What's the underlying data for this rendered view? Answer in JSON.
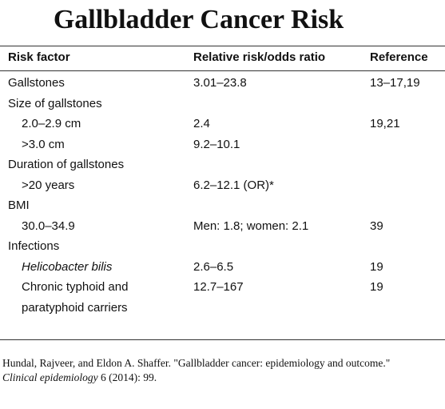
{
  "header": {
    "title": "Gallbladder Cancer Risk"
  },
  "table": {
    "columns": [
      "Risk factor",
      "Relative risk/odds ratio",
      "Reference"
    ],
    "rows": [
      {
        "factor": "Gallstones",
        "value": "3.01–23.8",
        "reference": "13–17,19"
      },
      {
        "factor": "Size of gallstones",
        "items": [
          {
            "factor": "2.0–2.9 cm",
            "value": "2.4",
            "reference": "19,21"
          },
          {
            "factor": ">3.0 cm",
            "value": "9.2–10.1"
          }
        ]
      },
      {
        "factor": "Duration of gallstones",
        "items": [
          {
            "factor": ">20 years",
            "value": "6.2–12.1 (OR)*"
          }
        ]
      },
      {
        "factor": "BMI",
        "items": [
          {
            "factor": "30.0–34.9",
            "value": "Men: 1.8; women: 2.1",
            "reference": "39"
          }
        ]
      },
      {
        "factor": "Infections",
        "items": [
          {
            "factor": "Helicobacter bilis",
            "value": "2.6–6.5",
            "reference": "19",
            "italic": true
          },
          {
            "factor": "Chronic typhoid and paratyphoid carriers",
            "value": "12.7–167",
            "reference": "19"
          }
        ]
      }
    ]
  },
  "citation": {
    "text": "Hundal, Rajveer, and Eldon A. Shaffer. \"Gallbladder cancer: epidemiology and outcome.\"",
    "journal": "Clinical epidemiology",
    "details": " 6 (2014): 99."
  }
}
